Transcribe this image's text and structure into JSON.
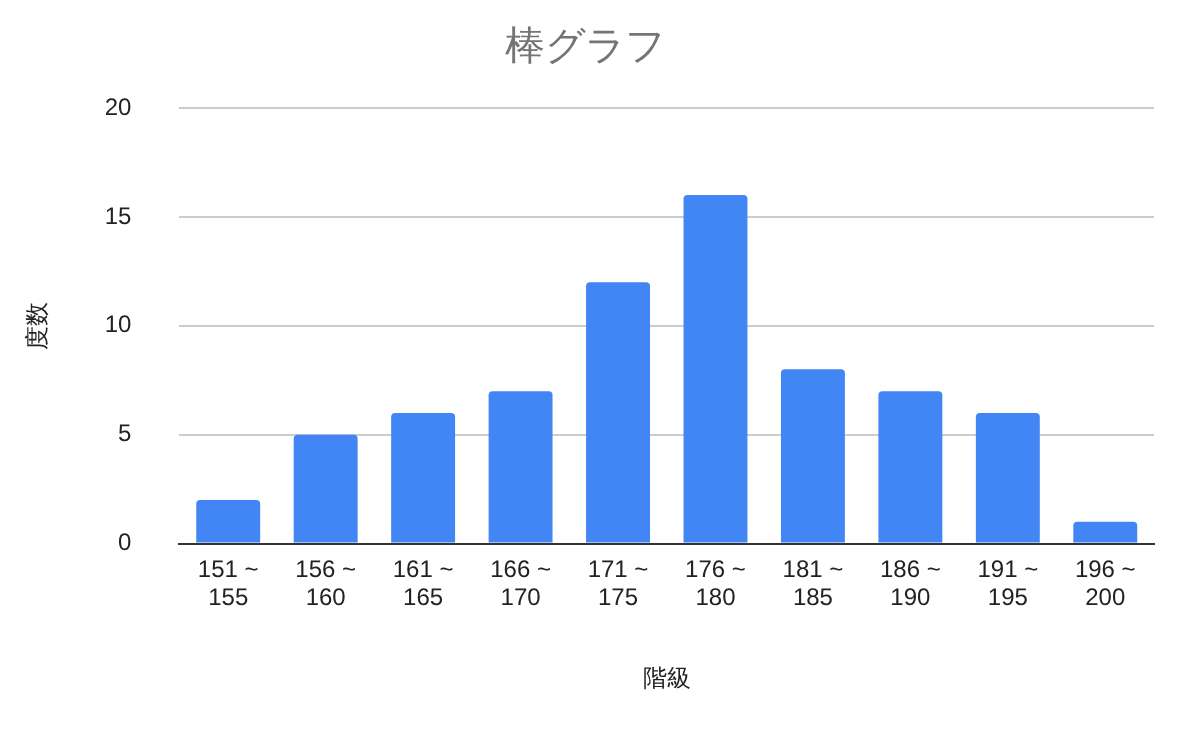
{
  "chart_data": {
    "type": "bar",
    "title": "棒グラフ",
    "xlabel": "階級",
    "ylabel": "度数",
    "categories": [
      "151 ~ 155",
      "156 ~ 160",
      "161 ~ 165",
      "166 ~ 170",
      "171 ~ 175",
      "176 ~ 180",
      "181 ~ 185",
      "186 ~ 190",
      "191 ~ 195",
      "196 ~ 200"
    ],
    "values": [
      2,
      5,
      6,
      7,
      12,
      16,
      8,
      7,
      6,
      1
    ],
    "color": "#4285f4",
    "ylim": [
      0,
      20
    ],
    "yticks": [
      0,
      5,
      10,
      15,
      20
    ],
    "grid": "y",
    "legend": false
  }
}
